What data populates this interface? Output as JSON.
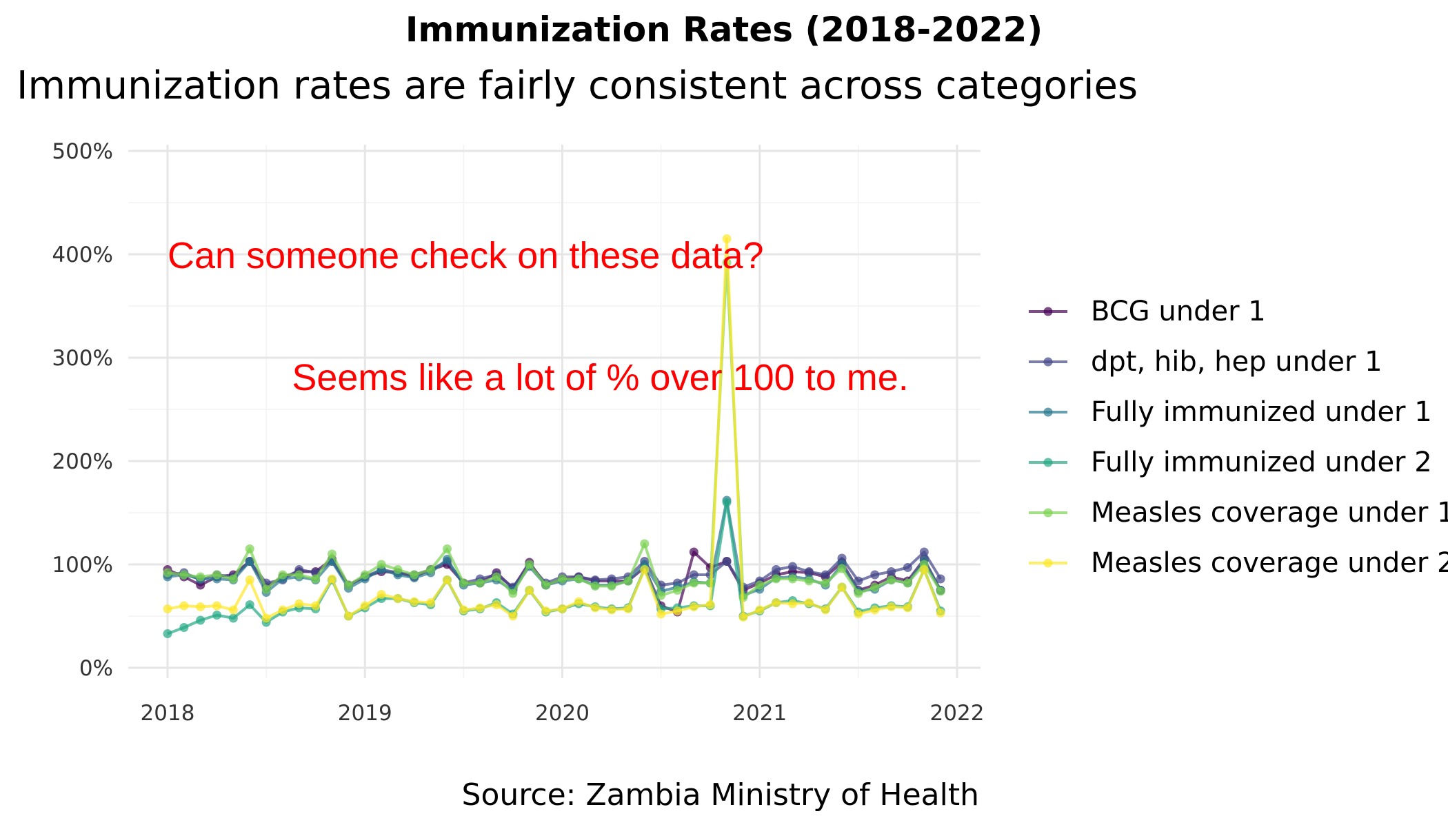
{
  "chart_data": {
    "type": "line",
    "title": "Immunization Rates (2018-2022)",
    "subtitle": "Immunization rates are fairly consistent across categories",
    "caption": "Source: Zambia Ministry of Health",
    "xlabel": "",
    "ylabel": "",
    "xlim": [
      2018,
      2022
    ],
    "ylim": [
      0,
      500
    ],
    "x_ticks": [
      "2018",
      "2019",
      "2020",
      "2021",
      "2022"
    ],
    "y_ticks": [
      "0%",
      "100%",
      "200%",
      "300%",
      "400%",
      "500%"
    ],
    "grid": true,
    "legend_position": "right",
    "annotations": [
      {
        "text": "Can someone check on these data?",
        "x": 2018.0,
        "y": 400
      },
      {
        "text": "Seems like a lot of % over 100 to me.",
        "x": 2018.63,
        "y": 282
      }
    ],
    "x": [
      "2018-01",
      "2018-02",
      "2018-03",
      "2018-04",
      "2018-05",
      "2018-06",
      "2018-07",
      "2018-08",
      "2018-09",
      "2018-10",
      "2018-11",
      "2018-12",
      "2019-01",
      "2019-02",
      "2019-03",
      "2019-04",
      "2019-05",
      "2019-06",
      "2019-07",
      "2019-08",
      "2019-09",
      "2019-10",
      "2019-11",
      "2019-12",
      "2020-01",
      "2020-02",
      "2020-03",
      "2020-04",
      "2020-05",
      "2020-06",
      "2020-07",
      "2020-08",
      "2020-09",
      "2020-10",
      "2020-11",
      "2020-12",
      "2021-01",
      "2021-02",
      "2021-03",
      "2021-04",
      "2021-05",
      "2021-06",
      "2021-07",
      "2021-08",
      "2021-09",
      "2021-10",
      "2021-11",
      "2021-12"
    ],
    "series": [
      {
        "name": "BCG under 1",
        "color": "#440154",
        "values": [
          95,
          88,
          80,
          88,
          90,
          103,
          78,
          88,
          93,
          93,
          105,
          80,
          88,
          93,
          92,
          88,
          95,
          100,
          82,
          82,
          92,
          77,
          102,
          80,
          86,
          88,
          84,
          84,
          84,
          97,
          60,
          54,
          112,
          97,
          103,
          75,
          82,
          90,
          93,
          92,
          88,
          102,
          75,
          80,
          88,
          84,
          105,
          75
        ]
      },
      {
        "name": "dpt, hib, hep under 1",
        "color": "#414487",
        "values": [
          90,
          92,
          85,
          90,
          88,
          103,
          82,
          85,
          95,
          92,
          103,
          80,
          88,
          95,
          92,
          90,
          95,
          103,
          82,
          86,
          90,
          78,
          100,
          82,
          88,
          88,
          85,
          86,
          88,
          103,
          80,
          82,
          90,
          90,
          103,
          78,
          84,
          95,
          98,
          93,
          90,
          106,
          84,
          90,
          93,
          97,
          112,
          86
        ]
      },
      {
        "name": "Fully immunized under 1",
        "color": "#2A788E",
        "values": [
          88,
          90,
          86,
          86,
          85,
          103,
          73,
          86,
          88,
          85,
          103,
          77,
          86,
          95,
          90,
          87,
          92,
          105,
          80,
          82,
          85,
          75,
          98,
          80,
          84,
          86,
          80,
          80,
          84,
          100,
          74,
          78,
          83,
          82,
          162,
          70,
          76,
          87,
          88,
          86,
          80,
          100,
          74,
          76,
          85,
          82,
          104,
          75
        ]
      },
      {
        "name": "Fully immunized under 2",
        "color": "#22A884",
        "values": [
          33,
          39,
          46,
          51,
          48,
          61,
          44,
          54,
          58,
          57,
          85,
          50,
          58,
          67,
          67,
          63,
          61,
          85,
          55,
          57,
          63,
          52,
          75,
          54,
          57,
          62,
          59,
          57,
          58,
          96,
          57,
          58,
          60,
          60,
          160,
          50,
          55,
          63,
          65,
          62,
          57,
          78,
          54,
          58,
          60,
          59,
          95,
          55
        ]
      },
      {
        "name": "Measles coverage under 1",
        "color": "#7AD151",
        "values": [
          92,
          90,
          88,
          90,
          86,
          115,
          76,
          90,
          90,
          86,
          110,
          80,
          90,
          100,
          95,
          90,
          95,
          115,
          82,
          82,
          88,
          72,
          100,
          80,
          86,
          86,
          79,
          79,
          84,
          120,
          70,
          75,
          82,
          82,
          392,
          68,
          80,
          86,
          86,
          84,
          82,
          96,
          72,
          78,
          85,
          82,
          100,
          74
        ]
      },
      {
        "name": "Measles coverage under 2",
        "color": "#FDE725",
        "values": [
          57,
          60,
          59,
          60,
          56,
          85,
          48,
          56,
          62,
          60,
          86,
          50,
          60,
          71,
          67,
          64,
          63,
          85,
          56,
          58,
          61,
          50,
          75,
          55,
          57,
          64,
          58,
          56,
          57,
          95,
          52,
          55,
          59,
          61,
          415,
          49,
          56,
          63,
          62,
          63,
          56,
          78,
          52,
          56,
          59,
          58,
          95,
          53
        ]
      }
    ]
  }
}
